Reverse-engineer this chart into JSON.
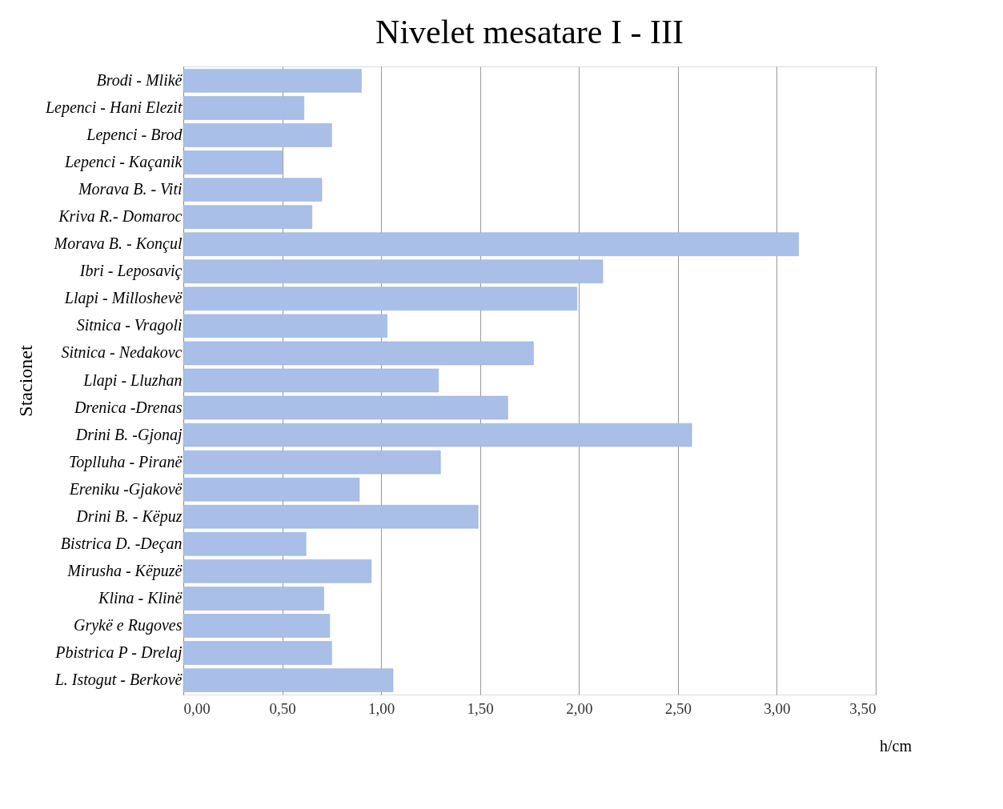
{
  "chart_data": {
    "type": "bar",
    "orientation": "horizontal",
    "title": "Nivelet mesatare I - III",
    "xlabel": "h/cm",
    "ylabel": "Stacionet",
    "categories": [
      "Brodi - Mlikë",
      "Lepenci - Hani Elezit",
      "Lepenci - Brod",
      "Lepenci - Kaçanik",
      "Morava B. - Viti",
      "Kriva R.- Domaroc",
      "Morava B. - Konçul",
      "Ibri - Leposaviç",
      "Llapi - Milloshevë",
      "Sitnica - Vragoli",
      "Sitnica - Nedakovc",
      "Llapi - Lluzhan",
      "Drenica -Drenas",
      "Drini B. -Gjonaj",
      "Toplluha - Piranë",
      "Ereniku -Gjakovë",
      "Drini B. - Këpuz",
      "Bistrica D. -Deçan",
      "Mirusha - Këpuzë",
      "Klina - Klinë",
      "Grykë e Rugoves",
      "Pbistrica P - Drelaj",
      "L. Istogut - Berkovë"
    ],
    "values": [
      0.9,
      0.61,
      0.75,
      0.5,
      0.7,
      0.65,
      3.11,
      2.12,
      1.99,
      1.03,
      1.77,
      1.29,
      1.64,
      2.57,
      1.3,
      0.89,
      1.49,
      0.62,
      0.95,
      0.71,
      0.74,
      0.75,
      1.06
    ],
    "color": "#a9bfe8",
    "xlim": [
      0,
      3.5
    ],
    "xticks": [
      {
        "value": 0,
        "label": "0,00"
      },
      {
        "value": 0.5,
        "label": "0,50"
      },
      {
        "value": 1,
        "label": "1,00"
      },
      {
        "value": 1.5,
        "label": "1,50"
      },
      {
        "value": 2,
        "label": "2,00"
      },
      {
        "value": 2.5,
        "label": "2,50"
      },
      {
        "value": 3,
        "label": "3,00"
      },
      {
        "value": 3.5,
        "label": "3,50"
      }
    ],
    "grid": "x"
  }
}
